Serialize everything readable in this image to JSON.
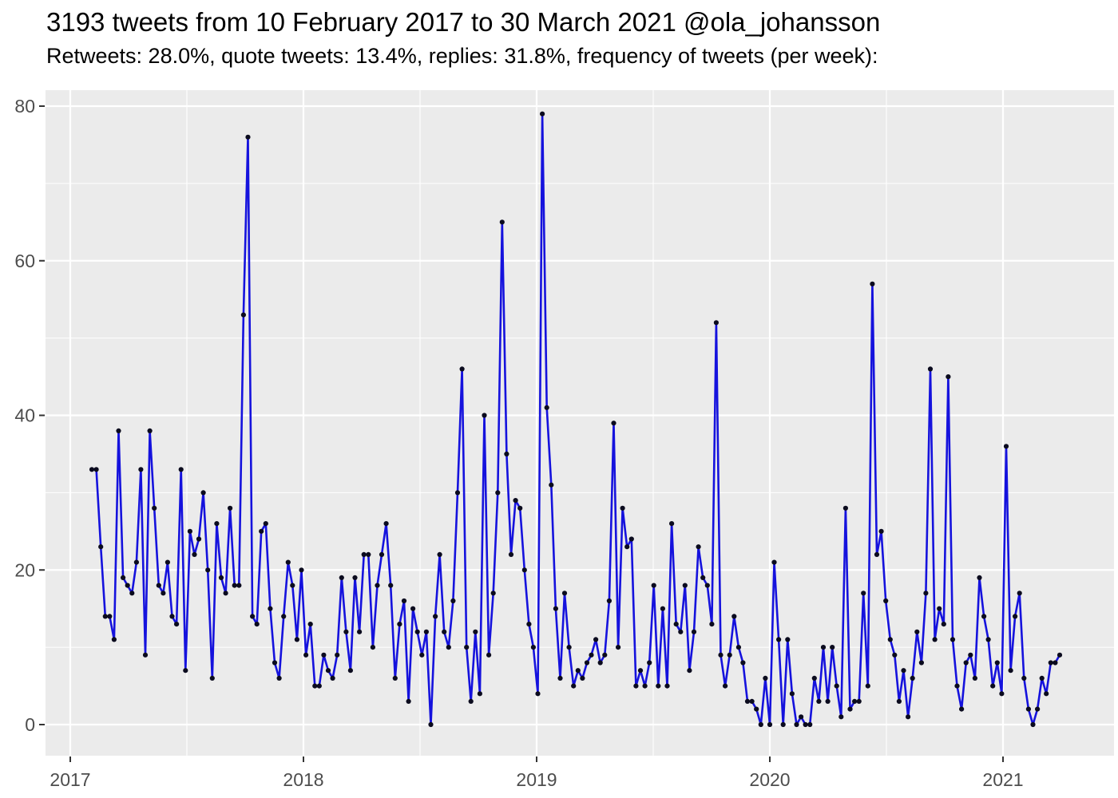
{
  "header": {
    "title": "3193 tweets from 10 February 2017 to 30 March 2021 @ola_johansson",
    "subtitle": "Retweets: 28.0%, quote tweets: 13.4%, replies: 31.8%, frequency of tweets (per week):"
  },
  "chart_data": {
    "type": "line",
    "title": "3193 tweets from 10 February 2017 to 30 March 2021 @ola_johansson",
    "subtitle": "Retweets: 28.0%, quote tweets: 13.4%, replies: 31.8%, frequency of tweets (per week):",
    "series_name": "tweets-per-week",
    "xlabel": "",
    "ylabel": "",
    "legend_position": "none",
    "grid": true,
    "x_tick_labels": [
      "2017",
      "2018",
      "2019",
      "2020",
      "2021"
    ],
    "y_tick_labels": [
      "0",
      "20",
      "40",
      "60",
      "80"
    ],
    "y_major_ticks": [
      0,
      20,
      40,
      60,
      80
    ],
    "y_minor_ticks": [
      10,
      30,
      50,
      70
    ],
    "ylim": [
      -4,
      82
    ],
    "x_start_label": "10 February 2017",
    "x_end_label": "30 March 2021",
    "values": [
      33,
      33,
      23,
      14,
      14,
      11,
      38,
      19,
      18,
      17,
      21,
      33,
      9,
      38,
      28,
      18,
      17,
      21,
      14,
      13,
      33,
      7,
      25,
      22,
      24,
      30,
      20,
      6,
      26,
      19,
      17,
      28,
      18,
      18,
      53,
      76,
      14,
      13,
      25,
      26,
      15,
      8,
      6,
      14,
      21,
      18,
      11,
      20,
      9,
      13,
      5,
      5,
      9,
      7,
      6,
      9,
      19,
      12,
      7,
      19,
      12,
      22,
      22,
      10,
      18,
      22,
      26,
      18,
      6,
      13,
      16,
      3,
      15,
      12,
      9,
      12,
      0,
      14,
      22,
      12,
      10,
      16,
      30,
      46,
      10,
      3,
      12,
      4,
      40,
      9,
      17,
      30,
      65,
      35,
      22,
      29,
      28,
      20,
      13,
      10,
      4,
      79,
      41,
      31,
      15,
      6,
      17,
      10,
      5,
      7,
      6,
      8,
      9,
      11,
      8,
      9,
      16,
      39,
      10,
      28,
      23,
      24,
      5,
      7,
      5,
      8,
      18,
      5,
      15,
      5,
      26,
      13,
      12,
      18,
      7,
      12,
      23,
      19,
      18,
      13,
      52,
      9,
      5,
      9,
      14,
      10,
      8,
      3,
      3,
      2,
      0,
      6,
      0,
      21,
      11,
      0,
      11,
      4,
      0,
      1,
      0,
      0,
      6,
      3,
      10,
      3,
      10,
      5,
      1,
      28,
      2,
      3,
      3,
      17,
      5,
      57,
      22,
      25,
      16,
      11,
      9,
      3,
      7,
      1,
      6,
      12,
      8,
      17,
      46,
      11,
      15,
      13,
      45,
      11,
      5,
      2,
      8,
      9,
      6,
      19,
      14,
      11,
      5,
      8,
      4,
      36,
      7,
      14,
      17,
      6,
      2,
      0,
      2,
      6,
      4,
      8,
      8,
      9
    ],
    "colors": {
      "line": "#1512dd",
      "point": "#0b0b1e",
      "panel_bg": "#ebebeb",
      "grid": "#ffffff",
      "axis_text": "#4d4d4d",
      "tick_mark": "#333333",
      "title_text": "#000000"
    }
  }
}
